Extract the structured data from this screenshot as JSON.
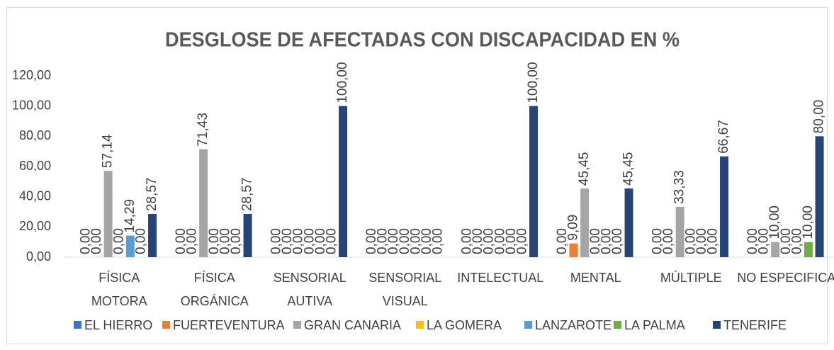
{
  "chart_data": {
    "type": "bar",
    "title": "DESGLOSE DE AFECTADAS CON DISCAPACIDAD EN %",
    "categories": [
      "FÍSICA\nMOTORA",
      "FÍSICA\nORGÁNICA",
      "SENSORIAL\nAUTIVA",
      "SENSORIAL\nVISUAL",
      "INTELECTUAL",
      "MENTAL",
      "MÚLTIPLE",
      "NO ESPECIFICA"
    ],
    "series": [
      {
        "name": "EL HIERRO",
        "color": "#4472c4",
        "values": [
          0,
          0,
          0,
          0,
          0,
          0,
          0,
          0
        ],
        "value_labels": [
          "0,00",
          "0,00",
          "0,00",
          "0,00",
          "0,00",
          "0,00",
          "0,00",
          "0,00"
        ]
      },
      {
        "name": "FUERTEVENTURA",
        "color": "#ed7d31",
        "values": [
          0,
          0,
          0,
          0,
          0,
          9.09,
          0,
          0
        ],
        "value_labels": [
          "0,00",
          "0,00",
          "0,00",
          "0,00",
          "0,00",
          "9,09",
          "0,00",
          "0,00"
        ]
      },
      {
        "name": "GRAN CANARIA",
        "color": "#a5a5a5",
        "values": [
          57.14,
          71.43,
          0,
          0,
          0,
          45.45,
          33.33,
          10
        ],
        "value_labels": [
          "57,14",
          "71,43",
          "0,00",
          "0,00",
          "0,00",
          "45,45",
          "33,33",
          "10,00"
        ]
      },
      {
        "name": "LA GOMERA",
        "color": "#ffc000",
        "values": [
          0,
          0,
          0,
          0,
          0,
          0,
          0,
          0
        ],
        "value_labels": [
          "0,00",
          "0,00",
          "0,00",
          "0,00",
          "0,00",
          "0,00",
          "0,00",
          "0,00"
        ]
      },
      {
        "name": "LANZAROTE",
        "color": "#5b9bd5",
        "values": [
          14.29,
          0,
          0,
          0,
          0,
          0,
          0,
          0
        ],
        "value_labels": [
          "14,29",
          "0,00",
          "0,00",
          "0,00",
          "0,00",
          "0,00",
          "0,00",
          "0,00"
        ]
      },
      {
        "name": "LA PALMA",
        "color": "#70ad47",
        "values": [
          0,
          0,
          0,
          0,
          0,
          0,
          0,
          10
        ],
        "value_labels": [
          "0,00",
          "0,00",
          "0,00",
          "0,00",
          "0,00",
          "0,00",
          "0,00",
          "10,00"
        ]
      },
      {
        "name": "TENERIFE",
        "color": "#264478",
        "values": [
          28.57,
          28.57,
          100,
          0,
          100,
          45.45,
          66.67,
          80
        ],
        "value_labels": [
          "28,57",
          "28,57",
          "100,00",
          "0,00",
          "100,00",
          "45,45",
          "66,67",
          "80,00"
        ]
      }
    ],
    "ylim": [
      0,
      120
    ],
    "yticks": [
      {
        "value": 0,
        "label": "0,00"
      },
      {
        "value": 20,
        "label": "20,00"
      },
      {
        "value": 40,
        "label": "40,00"
      },
      {
        "value": 60,
        "label": "60,00"
      },
      {
        "value": 80,
        "label": "80,00"
      },
      {
        "value": 100,
        "label": "100,00"
      },
      {
        "value": 120,
        "label": "120,00"
      }
    ],
    "grid": false,
    "legend": "bottom"
  }
}
